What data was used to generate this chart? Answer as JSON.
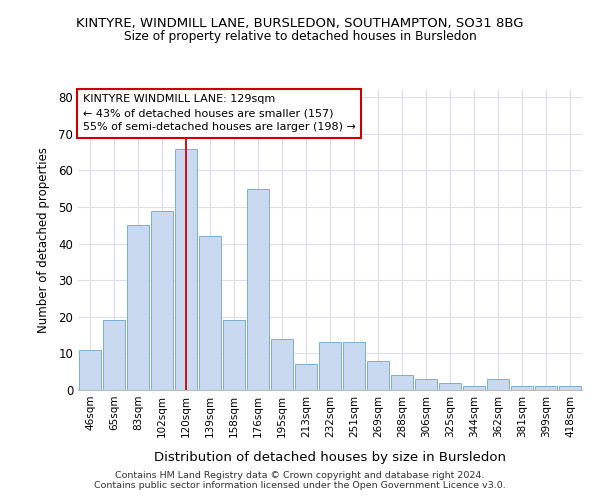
{
  "title": "KINTYRE, WINDMILL LANE, BURSLEDON, SOUTHAMPTON, SO31 8BG",
  "subtitle": "Size of property relative to detached houses in Bursledon",
  "xlabel": "Distribution of detached houses by size in Bursledon",
  "ylabel": "Number of detached properties",
  "categories": [
    "46sqm",
    "65sqm",
    "83sqm",
    "102sqm",
    "120sqm",
    "139sqm",
    "158sqm",
    "176sqm",
    "195sqm",
    "213sqm",
    "232sqm",
    "251sqm",
    "269sqm",
    "288sqm",
    "306sqm",
    "325sqm",
    "344sqm",
    "362sqm",
    "381sqm",
    "399sqm",
    "418sqm"
  ],
  "values": [
    11,
    19,
    45,
    49,
    66,
    42,
    19,
    55,
    14,
    7,
    13,
    13,
    8,
    4,
    3,
    2,
    1,
    3,
    1,
    1,
    1
  ],
  "bar_color": "#c9daf0",
  "bar_edge_color": "#7bafd4",
  "vline_x": 4,
  "vline_color": "#cc0000",
  "annotation_line1": "KINTYRE WINDMILL LANE: 129sqm",
  "annotation_line2": "← 43% of detached houses are smaller (157)",
  "annotation_line3": "55% of semi-detached houses are larger (198) →",
  "annotation_box_color": "#ffffff",
  "annotation_box_edge": "#cc0000",
  "ylim": [
    0,
    82
  ],
  "yticks": [
    0,
    10,
    20,
    30,
    40,
    50,
    60,
    70,
    80
  ],
  "footer1": "Contains HM Land Registry data © Crown copyright and database right 2024.",
  "footer2": "Contains public sector information licensed under the Open Government Licence v3.0.",
  "background_color": "#ffffff",
  "grid_color": "#ddddee"
}
